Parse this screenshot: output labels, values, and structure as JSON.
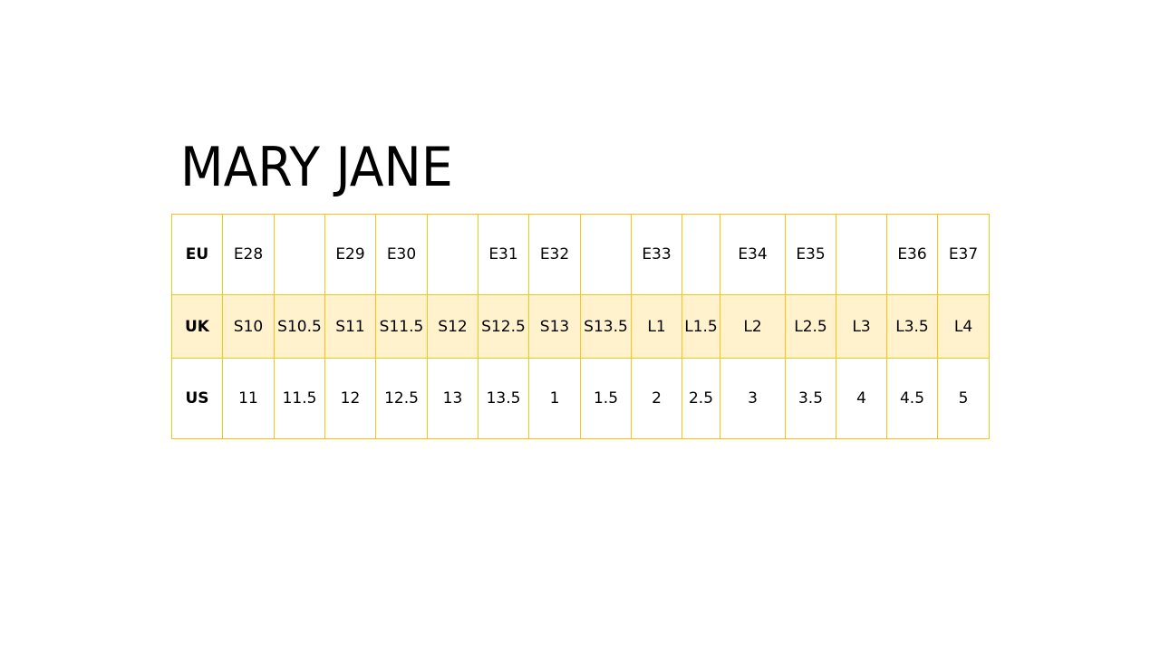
{
  "title": "MARY JANE",
  "table": {
    "rows": [
      {
        "label": "EU",
        "cells": [
          "E28",
          "",
          "E29",
          "E30",
          "",
          "E31",
          "E32",
          "",
          "E33",
          "",
          "E34",
          "E35",
          "",
          "E36",
          "E37"
        ]
      },
      {
        "label": "UK",
        "cells": [
          "S10",
          "S10.5",
          "S11",
          "S11.5",
          "S12",
          "S12.5",
          "S13",
          "S13.5",
          "L1",
          "L1.5",
          "L2",
          "L2.5",
          "L3",
          "L3.5",
          "L4"
        ]
      },
      {
        "label": "US",
        "cells": [
          "11",
          "11.5",
          "12",
          "12.5",
          "13",
          "13.5",
          "1",
          "1.5",
          "2",
          "2.5",
          "3",
          "3.5",
          "4",
          "4.5",
          "5"
        ]
      }
    ]
  },
  "colors": {
    "border": "#f5c518",
    "highlight_row": "#fff2cc"
  }
}
